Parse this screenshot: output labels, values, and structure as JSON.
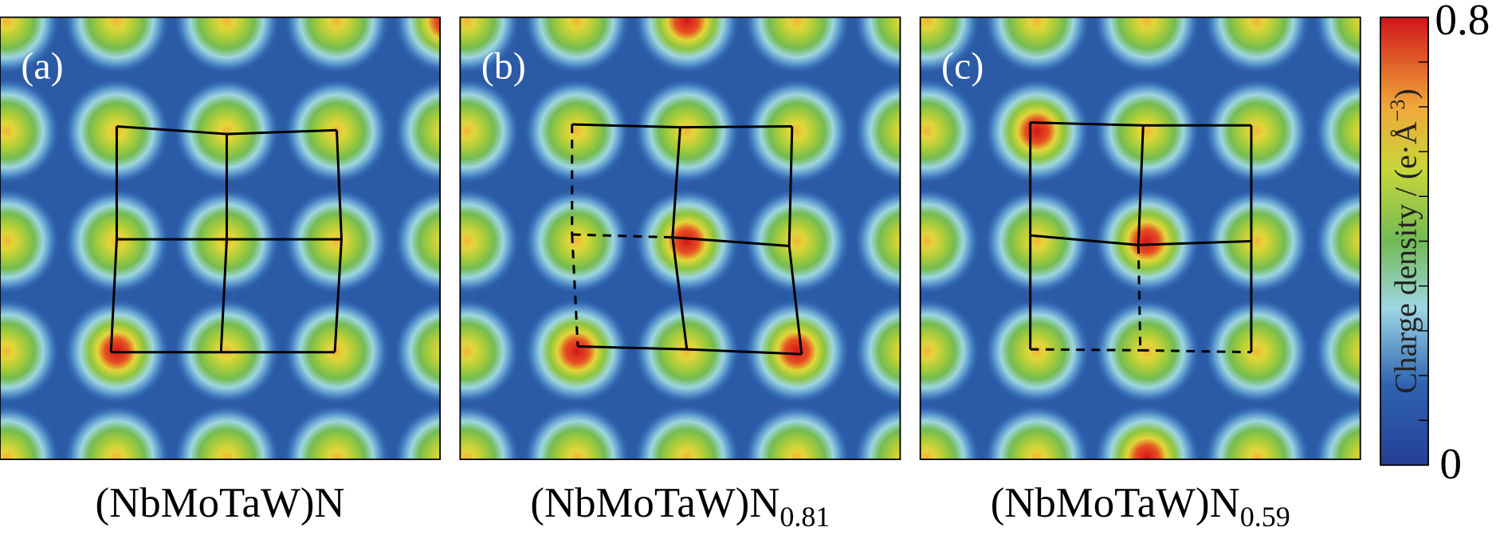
{
  "panels": [
    {
      "label": "(a)",
      "caption": "(NbMoTaW)N"
    },
    {
      "label": "(b)",
      "caption": "(NbMoTaW)N",
      "subscript": "0.81"
    },
    {
      "label": "(c)",
      "caption": "(NbMoTaW)N",
      "subscript": "0.59"
    }
  ],
  "colorbar": {
    "title": "Charge density / (e·Å",
    "title_sup": "−3",
    "title_end": ")",
    "max_label": "0.8",
    "min_label": "0"
  }
}
